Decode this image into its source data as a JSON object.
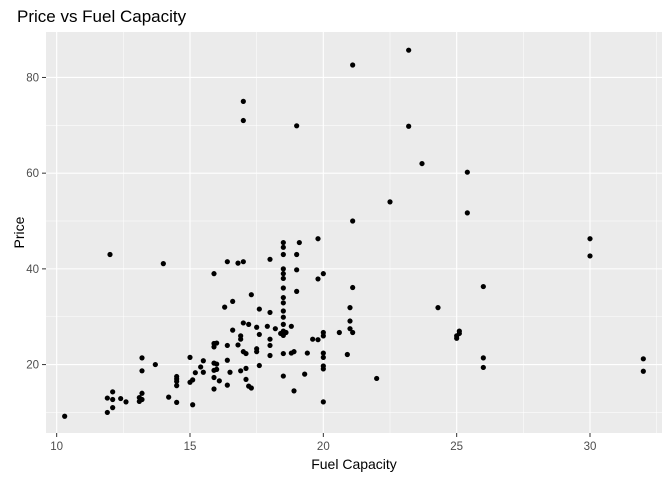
{
  "chart_data": {
    "type": "scatter",
    "title": "Price vs Fuel Capacity",
    "xlabel": "Fuel Capacity",
    "ylabel": "Price",
    "xlim": [
      9.6,
      32.7
    ],
    "ylim": [
      5.7,
      89.5
    ],
    "x_ticks": [
      10,
      15,
      20,
      25,
      30
    ],
    "y_ticks": [
      20,
      40,
      60,
      80
    ],
    "x_tick_labels": [
      "10",
      "15",
      "20",
      "25",
      "30"
    ],
    "y_tick_labels": [
      "20",
      "40",
      "60",
      "80"
    ],
    "grid": true,
    "background": "#ebebeb",
    "grid_color": "#ffffff",
    "point_color": "#000000",
    "points": [
      {
        "x": 10.3,
        "y": 9.2
      },
      {
        "x": 11.9,
        "y": 10.0
      },
      {
        "x": 11.9,
        "y": 13.0
      },
      {
        "x": 12.1,
        "y": 11.0
      },
      {
        "x": 12.1,
        "y": 12.7
      },
      {
        "x": 12.1,
        "y": 14.3
      },
      {
        "x": 12.4,
        "y": 12.9
      },
      {
        "x": 12.6,
        "y": 12.2
      },
      {
        "x": 13.1,
        "y": 12.3
      },
      {
        "x": 13.1,
        "y": 13.1
      },
      {
        "x": 13.2,
        "y": 12.7
      },
      {
        "x": 13.2,
        "y": 14.0
      },
      {
        "x": 13.2,
        "y": 18.7
      },
      {
        "x": 13.2,
        "y": 21.4
      },
      {
        "x": 13.7,
        "y": 20.0
      },
      {
        "x": 14.2,
        "y": 13.2
      },
      {
        "x": 14.5,
        "y": 12.1
      },
      {
        "x": 14.5,
        "y": 15.6
      },
      {
        "x": 14.5,
        "y": 16.5
      },
      {
        "x": 14.5,
        "y": 17.0
      },
      {
        "x": 14.5,
        "y": 17.5
      },
      {
        "x": 15.0,
        "y": 16.3
      },
      {
        "x": 15.0,
        "y": 21.5
      },
      {
        "x": 15.1,
        "y": 11.6
      },
      {
        "x": 15.1,
        "y": 16.8
      },
      {
        "x": 15.2,
        "y": 18.3
      },
      {
        "x": 15.4,
        "y": 19.5
      },
      {
        "x": 15.5,
        "y": 18.4
      },
      {
        "x": 15.5,
        "y": 20.8
      },
      {
        "x": 15.9,
        "y": 14.9
      },
      {
        "x": 15.9,
        "y": 17.3
      },
      {
        "x": 15.9,
        "y": 18.8
      },
      {
        "x": 15.9,
        "y": 20.3
      },
      {
        "x": 15.9,
        "y": 23.7
      },
      {
        "x": 15.9,
        "y": 24.4
      },
      {
        "x": 15.9,
        "y": 39.0
      },
      {
        "x": 16.0,
        "y": 19.0
      },
      {
        "x": 16.0,
        "y": 20.1
      },
      {
        "x": 16.0,
        "y": 24.5
      },
      {
        "x": 16.1,
        "y": 16.6
      },
      {
        "x": 16.3,
        "y": 32.0
      },
      {
        "x": 16.4,
        "y": 15.7
      },
      {
        "x": 16.4,
        "y": 20.9
      },
      {
        "x": 16.4,
        "y": 24.0
      },
      {
        "x": 16.4,
        "y": 41.5
      },
      {
        "x": 16.5,
        "y": 18.4
      },
      {
        "x": 16.6,
        "y": 27.2
      },
      {
        "x": 16.6,
        "y": 33.2
      },
      {
        "x": 16.8,
        "y": 24.1
      },
      {
        "x": 16.8,
        "y": 41.2
      },
      {
        "x": 16.9,
        "y": 25.3
      },
      {
        "x": 16.9,
        "y": 26.0
      },
      {
        "x": 16.9,
        "y": 18.7
      },
      {
        "x": 17.0,
        "y": 22.7
      },
      {
        "x": 17.0,
        "y": 28.7
      },
      {
        "x": 17.0,
        "y": 71.0
      },
      {
        "x": 17.0,
        "y": 75.0
      },
      {
        "x": 17.0,
        "y": 41.5
      },
      {
        "x": 17.1,
        "y": 16.9
      },
      {
        "x": 17.1,
        "y": 22.3
      },
      {
        "x": 17.1,
        "y": 19.2
      },
      {
        "x": 17.2,
        "y": 15.5
      },
      {
        "x": 17.2,
        "y": 28.4
      },
      {
        "x": 17.3,
        "y": 15.1
      },
      {
        "x": 17.3,
        "y": 34.6
      },
      {
        "x": 17.5,
        "y": 23.3
      },
      {
        "x": 17.5,
        "y": 22.7
      },
      {
        "x": 17.5,
        "y": 27.8
      },
      {
        "x": 17.6,
        "y": 19.8
      },
      {
        "x": 17.6,
        "y": 31.6
      },
      {
        "x": 17.6,
        "y": 26.3
      },
      {
        "x": 17.9,
        "y": 28.0
      },
      {
        "x": 18.0,
        "y": 21.9
      },
      {
        "x": 18.0,
        "y": 30.9
      },
      {
        "x": 18.0,
        "y": 42.0
      },
      {
        "x": 18.0,
        "y": 25.3
      },
      {
        "x": 18.0,
        "y": 24.0
      },
      {
        "x": 18.2,
        "y": 27.5
      },
      {
        "x": 18.4,
        "y": 26.5
      },
      {
        "x": 18.5,
        "y": 17.6
      },
      {
        "x": 18.5,
        "y": 22.3
      },
      {
        "x": 18.5,
        "y": 26.1
      },
      {
        "x": 18.5,
        "y": 27.0
      },
      {
        "x": 18.5,
        "y": 28.4
      },
      {
        "x": 18.5,
        "y": 29.9
      },
      {
        "x": 18.5,
        "y": 31.2
      },
      {
        "x": 18.5,
        "y": 32.9
      },
      {
        "x": 18.5,
        "y": 34.0
      },
      {
        "x": 18.5,
        "y": 36.0
      },
      {
        "x": 18.5,
        "y": 38.0
      },
      {
        "x": 18.5,
        "y": 39.0
      },
      {
        "x": 18.5,
        "y": 40.0
      },
      {
        "x": 18.5,
        "y": 43.0
      },
      {
        "x": 18.5,
        "y": 44.5
      },
      {
        "x": 18.5,
        "y": 45.5
      },
      {
        "x": 18.6,
        "y": 26.7
      },
      {
        "x": 18.8,
        "y": 22.4
      },
      {
        "x": 18.8,
        "y": 28.0
      },
      {
        "x": 18.9,
        "y": 14.5
      },
      {
        "x": 18.9,
        "y": 22.7
      },
      {
        "x": 19.0,
        "y": 43.0
      },
      {
        "x": 19.0,
        "y": 69.9
      },
      {
        "x": 19.0,
        "y": 35.3
      },
      {
        "x": 19.0,
        "y": 39.8
      },
      {
        "x": 19.1,
        "y": 45.5
      },
      {
        "x": 19.3,
        "y": 18.0
      },
      {
        "x": 19.4,
        "y": 22.4
      },
      {
        "x": 19.6,
        "y": 25.3
      },
      {
        "x": 19.8,
        "y": 46.3
      },
      {
        "x": 19.8,
        "y": 37.9
      },
      {
        "x": 19.8,
        "y": 25.2
      },
      {
        "x": 20.0,
        "y": 12.2
      },
      {
        "x": 20.0,
        "y": 19.1
      },
      {
        "x": 20.0,
        "y": 19.7
      },
      {
        "x": 20.0,
        "y": 21.5
      },
      {
        "x": 20.0,
        "y": 22.4
      },
      {
        "x": 20.0,
        "y": 26.0
      },
      {
        "x": 20.0,
        "y": 26.7
      },
      {
        "x": 20.0,
        "y": 39.0
      },
      {
        "x": 20.6,
        "y": 26.7
      },
      {
        "x": 20.9,
        "y": 22.1
      },
      {
        "x": 21.0,
        "y": 27.5
      },
      {
        "x": 21.0,
        "y": 29.1
      },
      {
        "x": 21.0,
        "y": 31.9
      },
      {
        "x": 21.1,
        "y": 36.1
      },
      {
        "x": 21.1,
        "y": 26.7
      },
      {
        "x": 21.1,
        "y": 50.0
      },
      {
        "x": 21.1,
        "y": 82.6
      },
      {
        "x": 22.0,
        "y": 17.1
      },
      {
        "x": 22.5,
        "y": 54.0
      },
      {
        "x": 23.2,
        "y": 85.7
      },
      {
        "x": 23.2,
        "y": 69.8
      },
      {
        "x": 23.7,
        "y": 62.0
      },
      {
        "x": 24.3,
        "y": 31.9
      },
      {
        "x": 25.0,
        "y": 25.5
      },
      {
        "x": 25.0,
        "y": 26.0
      },
      {
        "x": 25.1,
        "y": 26.5
      },
      {
        "x": 25.1,
        "y": 27.0
      },
      {
        "x": 25.4,
        "y": 60.2
      },
      {
        "x": 25.4,
        "y": 51.7
      },
      {
        "x": 26.0,
        "y": 19.4
      },
      {
        "x": 26.0,
        "y": 21.4
      },
      {
        "x": 26.0,
        "y": 36.3
      },
      {
        "x": 30.0,
        "y": 42.7
      },
      {
        "x": 30.0,
        "y": 46.3
      },
      {
        "x": 32.0,
        "y": 18.6
      },
      {
        "x": 32.0,
        "y": 21.2
      },
      {
        "x": 12.0,
        "y": 43.0
      },
      {
        "x": 14.0,
        "y": 41.1
      }
    ]
  }
}
